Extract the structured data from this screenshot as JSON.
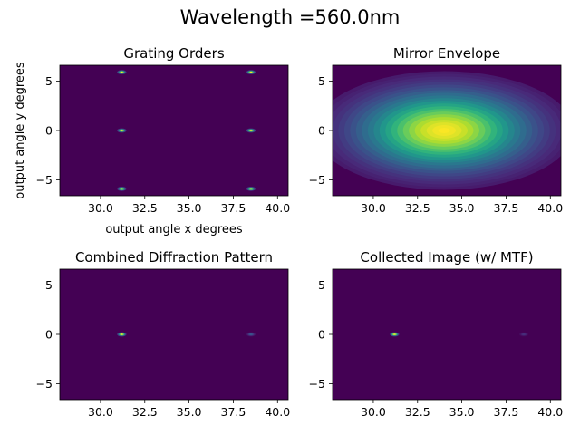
{
  "figure": {
    "suptitle": "Wavelength =560.0nm"
  },
  "chart_data": [
    {
      "type": "heatmap",
      "title": "Grating Orders",
      "xlabel": "output angle x degrees",
      "ylabel": "output angle y degrees",
      "xlim": [
        27.7,
        40.6
      ],
      "ylim": [
        -6.6,
        6.6
      ],
      "xticks": [
        30.0,
        32.5,
        35.0,
        37.5,
        40.0
      ],
      "xtick_labels": [
        "30.0",
        "32.5",
        "35.0",
        "37.5",
        "40.0"
      ],
      "yticks": [
        -5,
        0,
        5
      ],
      "ytick_labels": [
        "−5",
        "0",
        "5"
      ],
      "colormap": "viridis",
      "spots": [
        {
          "x": 31.2,
          "y": 5.9,
          "intensity": 1.0
        },
        {
          "x": 38.5,
          "y": 5.9,
          "intensity": 1.0
        },
        {
          "x": 31.2,
          "y": 0.0,
          "intensity": 1.0
        },
        {
          "x": 38.5,
          "y": 0.0,
          "intensity": 1.0
        },
        {
          "x": 31.2,
          "y": -5.9,
          "intensity": 1.0
        },
        {
          "x": 38.5,
          "y": -5.9,
          "intensity": 1.0
        }
      ]
    },
    {
      "type": "heatmap",
      "title": "Mirror Envelope",
      "xlabel": "",
      "ylabel": "",
      "xlim": [
        27.7,
        40.6
      ],
      "ylim": [
        -6.6,
        6.6
      ],
      "xticks": [
        30.0,
        32.5,
        35.0,
        37.5,
        40.0
      ],
      "xtick_labels": [
        "30.0",
        "32.5",
        "35.0",
        "37.5",
        "40.0"
      ],
      "yticks": [
        -5,
        0,
        5
      ],
      "ytick_labels": [
        "−5",
        "0",
        "5"
      ],
      "colormap": "viridis",
      "envelope": {
        "center_x": 34.0,
        "center_y": 0.0,
        "half_width_x": 7.3,
        "half_width_y": 6.0,
        "peak": 1.0
      }
    },
    {
      "type": "heatmap",
      "title": "Combined Diffraction Pattern",
      "xlabel": "",
      "ylabel": "",
      "xlim": [
        27.7,
        40.6
      ],
      "ylim": [
        -6.6,
        6.6
      ],
      "xticks": [
        30.0,
        32.5,
        35.0,
        37.5,
        40.0
      ],
      "xtick_labels": [
        "30.0",
        "32.5",
        "35.0",
        "37.5",
        "40.0"
      ],
      "yticks": [
        -5,
        0,
        5
      ],
      "ytick_labels": [
        "−5",
        "0",
        "5"
      ],
      "colormap": "viridis",
      "spots": [
        {
          "x": 31.2,
          "y": 0.0,
          "intensity": 1.0
        },
        {
          "x": 38.5,
          "y": 0.0,
          "intensity": 0.28
        }
      ]
    },
    {
      "type": "heatmap",
      "title": "Collected Image (w/ MTF)",
      "xlabel": "",
      "ylabel": "",
      "xlim": [
        27.7,
        40.6
      ],
      "ylim": [
        -6.6,
        6.6
      ],
      "xticks": [
        30.0,
        32.5,
        35.0,
        37.5,
        40.0
      ],
      "xtick_labels": [
        "30.0",
        "32.5",
        "35.0",
        "37.5",
        "40.0"
      ],
      "yticks": [
        -5,
        0,
        5
      ],
      "ytick_labels": [
        "−5",
        "0",
        "5"
      ],
      "colormap": "viridis",
      "spots": [
        {
          "x": 31.2,
          "y": 0.0,
          "intensity": 1.0
        },
        {
          "x": 38.5,
          "y": 0.0,
          "intensity": 0.14
        }
      ]
    }
  ]
}
